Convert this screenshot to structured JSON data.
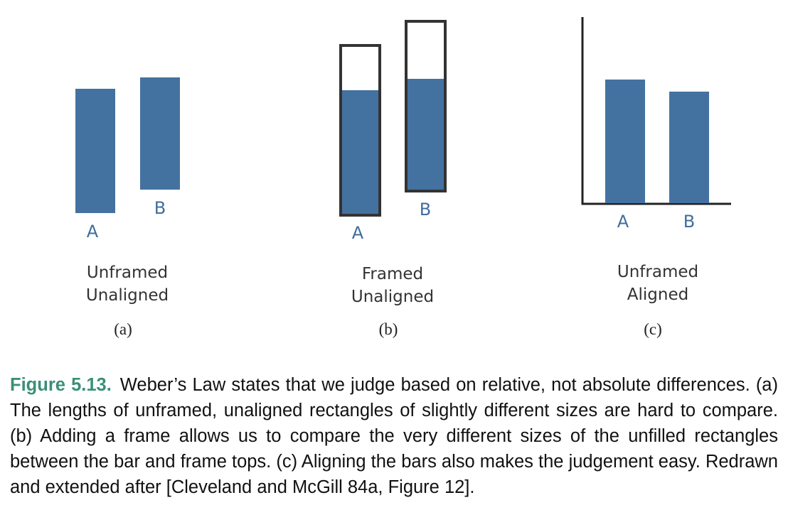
{
  "panels": [
    {
      "id": "a",
      "panel_label": "(a)",
      "condition_line1": "Unframed",
      "condition_line2": "Unaligned",
      "bars": [
        {
          "label": "A",
          "fill": 1.0
        },
        {
          "label": "B",
          "fill": 1.0
        }
      ]
    },
    {
      "id": "b",
      "panel_label": "(b)",
      "condition_line1": "Framed",
      "condition_line2": "Unaligned",
      "bars": [
        {
          "label": "A",
          "fill": 0.73
        },
        {
          "label": "B",
          "fill": 0.66
        }
      ]
    },
    {
      "id": "c",
      "panel_label": "(c)",
      "condition_line1": "Unframed",
      "condition_line2": "Aligned",
      "bars": [
        {
          "label": "A",
          "fill": 1.0
        },
        {
          "label": "B",
          "fill": 1.0
        }
      ]
    }
  ],
  "colors": {
    "bar": "#4472a0",
    "bar_label": "#3f6e9c",
    "figure_number": "#3a8f78"
  },
  "caption": {
    "figure_number": "Figure 5.13.",
    "text": "Weber’s Law states that we judge based on relative, not absolute differences. (a) The lengths of unframed, unaligned rectangles of slightly different sizes are hard to compare. (b) Adding a frame allows us to compare the very different sizes of the unfilled rectangles between the bar and frame tops. (c) Aligning the bars also makes the judgement easy. Redrawn and extended after [Cleveland and McGill 84a, Figure 12]."
  }
}
